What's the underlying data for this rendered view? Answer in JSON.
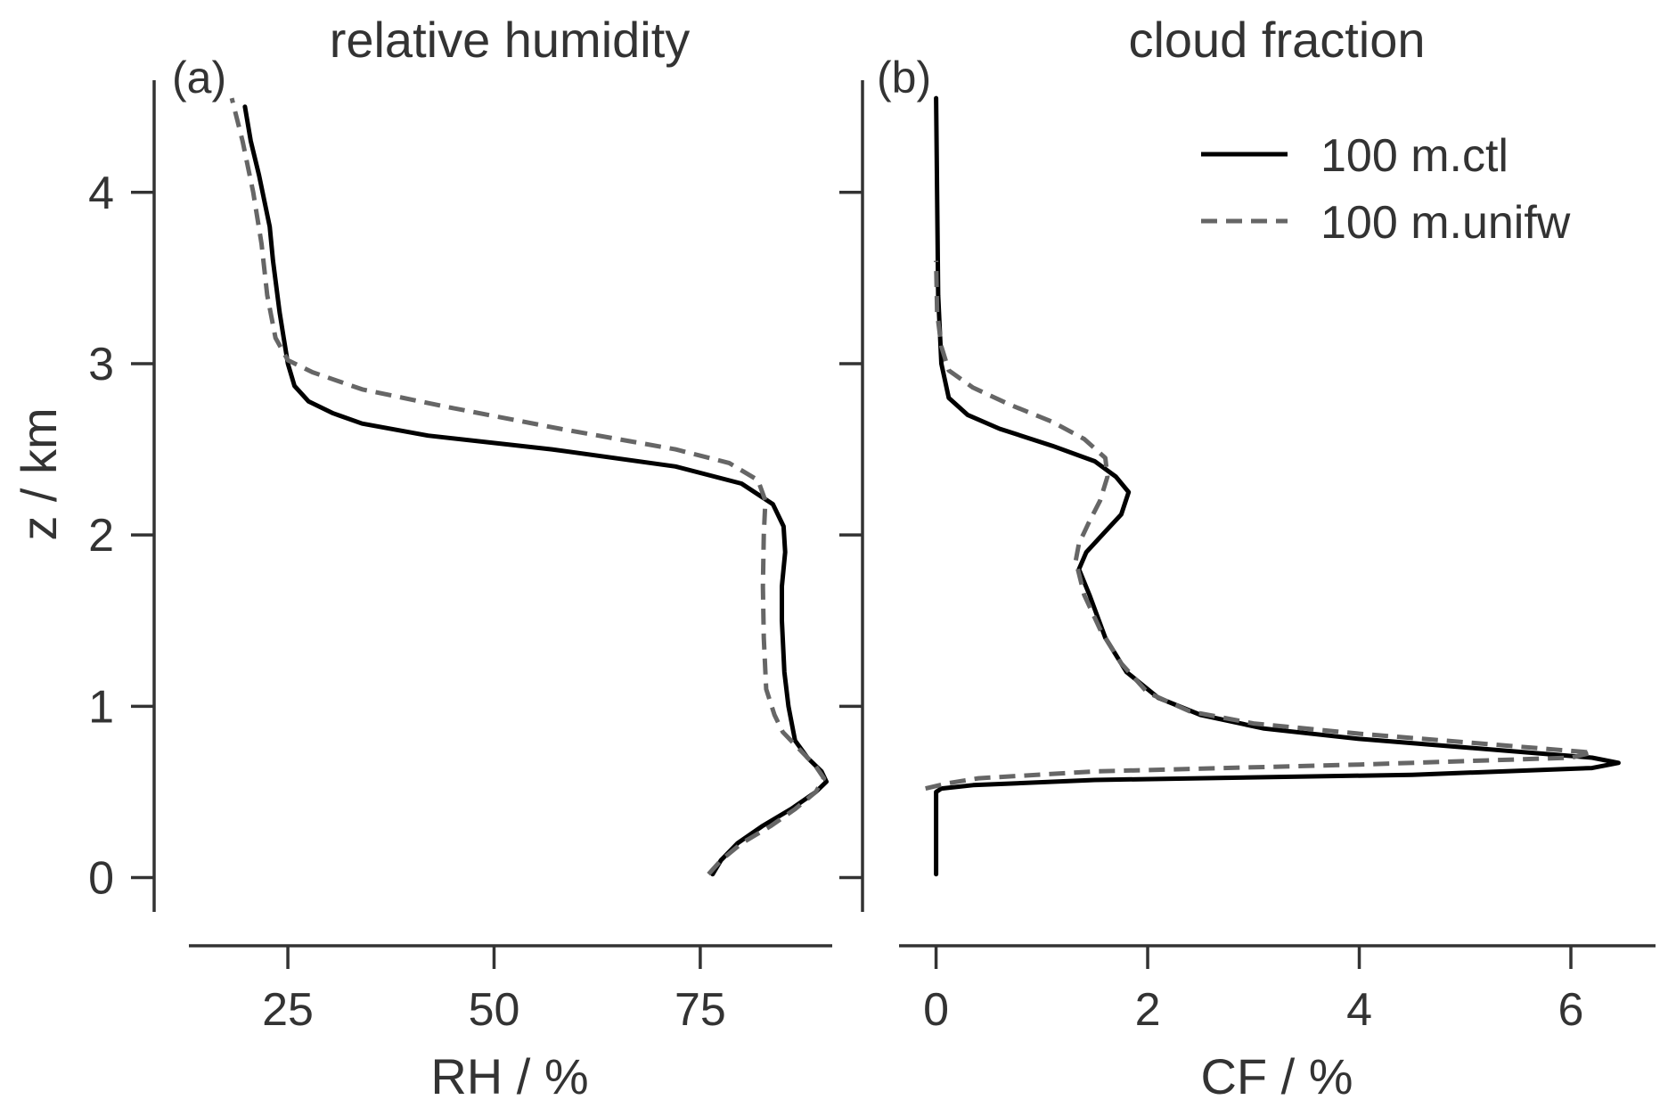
{
  "ylabel": "z / km",
  "legend": [
    {
      "label": "100 m.ctl"
    },
    {
      "label": "100 m.unifw"
    }
  ],
  "colors": {
    "ctl": "#000000",
    "unifw": "#666666",
    "axis": "#333333"
  },
  "chart_data": [
    {
      "type": "line",
      "panel": "(a)",
      "title": "relative humidity",
      "xlabel": "RH / %",
      "ylabel": "z / km",
      "xlim": [
        13,
        91
      ],
      "ylim": [
        -0.2,
        4.8
      ],
      "xticks": [
        25,
        50,
        75
      ],
      "yticks": [
        0,
        1,
        2,
        3,
        4
      ],
      "grid": false,
      "series": [
        {
          "name": "100 m.ctl",
          "style": "solid",
          "color": "#000000",
          "points": [
            [
              76.5,
              0.02
            ],
            [
              77.5,
              0.1
            ],
            [
              79.5,
              0.2
            ],
            [
              82.5,
              0.3
            ],
            [
              86,
              0.4
            ],
            [
              89,
              0.5
            ],
            [
              90.3,
              0.56
            ],
            [
              89.7,
              0.62
            ],
            [
              88,
              0.7
            ],
            [
              86.5,
              0.8
            ],
            [
              85.7,
              1.0
            ],
            [
              85.2,
              1.2
            ],
            [
              84.9,
              1.5
            ],
            [
              84.9,
              1.7
            ],
            [
              85.3,
              1.9
            ],
            [
              85.1,
              2.05
            ],
            [
              83.8,
              2.18
            ],
            [
              80,
              2.3
            ],
            [
              72,
              2.4
            ],
            [
              57,
              2.5
            ],
            [
              42,
              2.58
            ],
            [
              34,
              2.65
            ],
            [
              30.5,
              2.71
            ],
            [
              27.5,
              2.78
            ],
            [
              25.8,
              2.87
            ],
            [
              25,
              3.0
            ],
            [
              24.5,
              3.15
            ],
            [
              24,
              3.3
            ],
            [
              23.2,
              3.6
            ],
            [
              22.8,
              3.8
            ],
            [
              21.5,
              4.1
            ],
            [
              20.5,
              4.3
            ],
            [
              19.8,
              4.5
            ]
          ]
        },
        {
          "name": "100 m.unifw",
          "style": "dashed",
          "color": "#666666",
          "points": [
            [
              76,
              0.02
            ],
            [
              77.5,
              0.1
            ],
            [
              80,
              0.2
            ],
            [
              83.5,
              0.3
            ],
            [
              86.5,
              0.4
            ],
            [
              89,
              0.5
            ],
            [
              90,
              0.58
            ],
            [
              89,
              0.65
            ],
            [
              87,
              0.75
            ],
            [
              85,
              0.85
            ],
            [
              84,
              0.95
            ],
            [
              83,
              1.1
            ],
            [
              82.7,
              1.4
            ],
            [
              82.6,
              1.7
            ],
            [
              82.7,
              2.0
            ],
            [
              82.9,
              2.2
            ],
            [
              82,
              2.32
            ],
            [
              78.5,
              2.42
            ],
            [
              72,
              2.5
            ],
            [
              58,
              2.62
            ],
            [
              44,
              2.75
            ],
            [
              34,
              2.85
            ],
            [
              28,
              2.95
            ],
            [
              25,
              3.02
            ],
            [
              23.5,
              3.15
            ],
            [
              22.5,
              3.4
            ],
            [
              21.8,
              3.7
            ],
            [
              20.8,
              4.0
            ],
            [
              19.5,
              4.3
            ],
            [
              18.2,
              4.55
            ]
          ]
        }
      ]
    },
    {
      "type": "line",
      "panel": "(b)",
      "title": "cloud fraction",
      "xlabel": "CF / %",
      "ylabel": "",
      "xlim": [
        -0.35,
        6.8
      ],
      "ylim": [
        -0.2,
        4.8
      ],
      "xticks": [
        0,
        2,
        4,
        6
      ],
      "yticks": [
        0,
        1,
        2,
        3,
        4
      ],
      "legend_position": "top-right",
      "grid": false,
      "series": [
        {
          "name": "100 m.ctl",
          "style": "solid",
          "color": "#000000",
          "points": [
            [
              0,
              0.02
            ],
            [
              0,
              0.5
            ],
            [
              0.05,
              0.52
            ],
            [
              0.35,
              0.54
            ],
            [
              1.5,
              0.57
            ],
            [
              4.5,
              0.6
            ],
            [
              6.2,
              0.64
            ],
            [
              6.45,
              0.67
            ],
            [
              6.2,
              0.7
            ],
            [
              5,
              0.76
            ],
            [
              4,
              0.81
            ],
            [
              3.1,
              0.87
            ],
            [
              2.5,
              0.95
            ],
            [
              2.1,
              1.05
            ],
            [
              1.8,
              1.2
            ],
            [
              1.6,
              1.4
            ],
            [
              1.45,
              1.65
            ],
            [
              1.35,
              1.8
            ],
            [
              1.42,
              1.9
            ],
            [
              1.6,
              2.02
            ],
            [
              1.75,
              2.12
            ],
            [
              1.82,
              2.25
            ],
            [
              1.7,
              2.34
            ],
            [
              1.5,
              2.43
            ],
            [
              1.1,
              2.52
            ],
            [
              0.6,
              2.62
            ],
            [
              0.3,
              2.7
            ],
            [
              0.12,
              2.8
            ],
            [
              0.05,
              3.0
            ],
            [
              0.02,
              3.4
            ],
            [
              0.01,
              4.0
            ],
            [
              0,
              4.55
            ]
          ]
        },
        {
          "name": "100 m.unifw",
          "style": "dashed",
          "color": "#666666",
          "points": [
            [
              -0.1,
              0.52
            ],
            [
              0.1,
              0.55
            ],
            [
              0.4,
              0.58
            ],
            [
              1.5,
              0.62
            ],
            [
              4,
              0.66
            ],
            [
              6,
              0.7
            ],
            [
              6.2,
              0.73
            ],
            [
              5.2,
              0.78
            ],
            [
              4,
              0.84
            ],
            [
              3,
              0.9
            ],
            [
              2.4,
              0.97
            ],
            [
              2,
              1.08
            ],
            [
              1.75,
              1.25
            ],
            [
              1.55,
              1.45
            ],
            [
              1.4,
              1.65
            ],
            [
              1.32,
              1.85
            ],
            [
              1.35,
              1.95
            ],
            [
              1.45,
              2.08
            ],
            [
              1.55,
              2.2
            ],
            [
              1.62,
              2.34
            ],
            [
              1.6,
              2.45
            ],
            [
              1.4,
              2.56
            ],
            [
              1.1,
              2.66
            ],
            [
              0.7,
              2.76
            ],
            [
              0.35,
              2.86
            ],
            [
              0.12,
              2.96
            ],
            [
              0.05,
              3.1
            ],
            [
              0.01,
              3.3
            ],
            [
              0,
              3.6
            ]
          ]
        }
      ]
    }
  ]
}
